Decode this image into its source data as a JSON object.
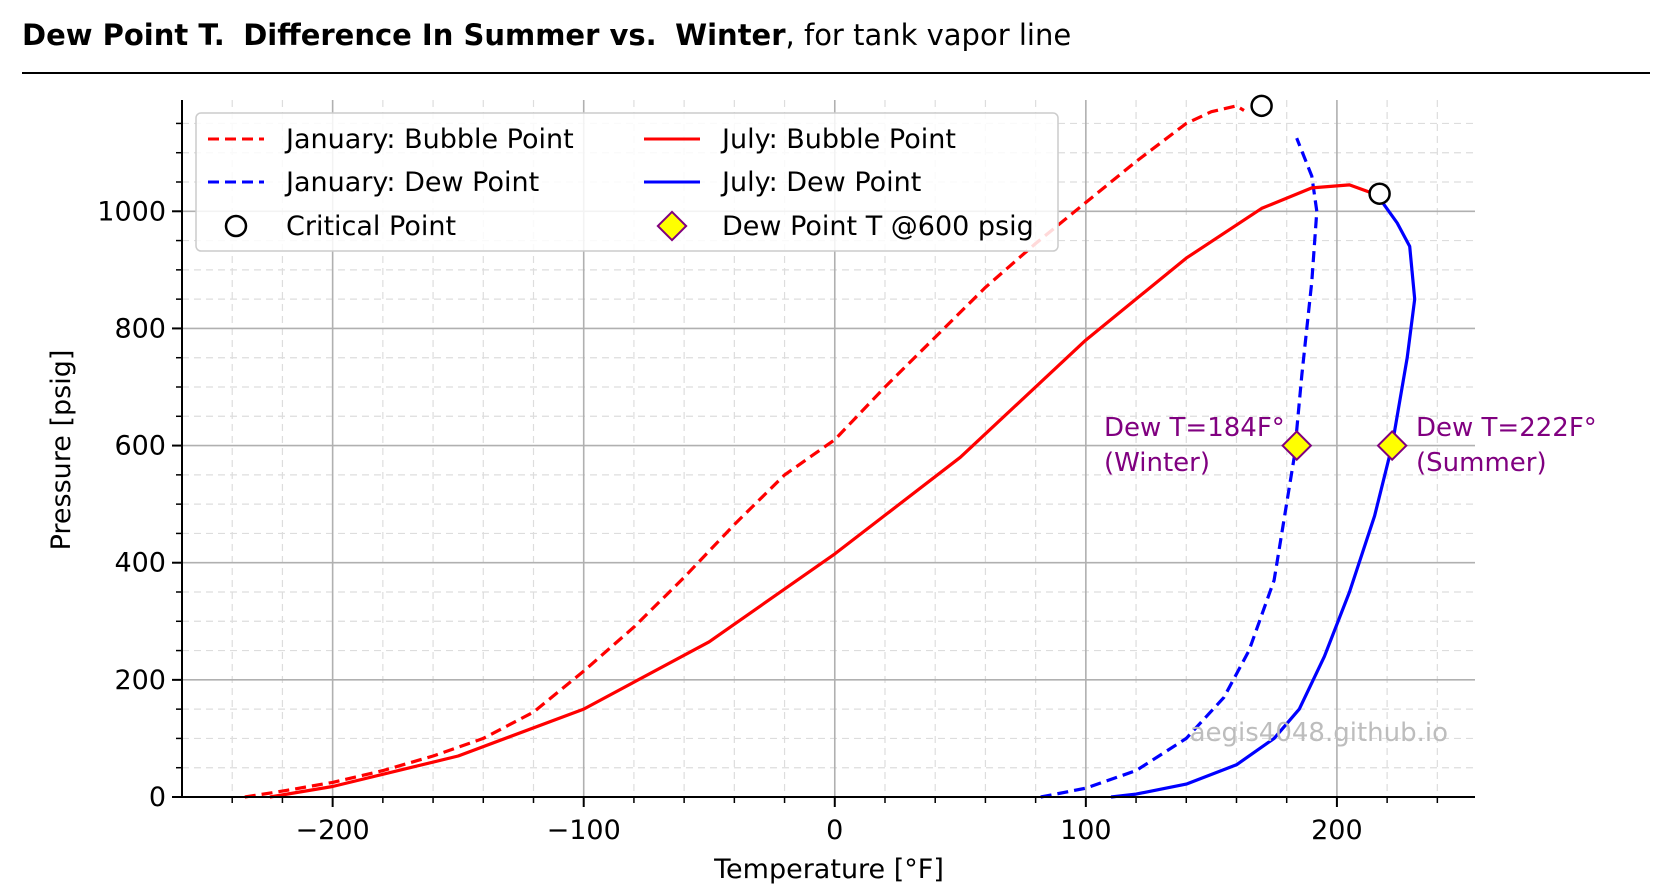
{
  "title": {
    "bold_part_1": "Dew Point T.",
    "bold_part_2": "Difference In Summer vs.",
    "bold_part_3": "Winter",
    "rest": ", for tank vapor line"
  },
  "watermark": "aegis4048.github.io",
  "colors": {
    "bubble": "#ff0000",
    "dew": "#0000ff",
    "annotation": "#800080",
    "marker_fill": "#ffff00",
    "marker_edge": "#800080",
    "grid": "#b0b0b0"
  },
  "chart_data": {
    "type": "line",
    "xlabel": "Temperature [°F]",
    "ylabel": "Pressure [psig]",
    "xlim": [
      -260,
      255
    ],
    "ylim": [
      0,
      1190
    ],
    "x_ticks": [
      -200,
      -100,
      0,
      100,
      200
    ],
    "x_tick_labels": [
      "−200",
      "−100",
      "0",
      "100",
      "200"
    ],
    "y_ticks": [
      0,
      200,
      400,
      600,
      800,
      1000
    ],
    "y_tick_labels": [
      "0",
      "200",
      "400",
      "600",
      "800",
      "1000"
    ],
    "grid": true,
    "legend_position": "top-left",
    "series": [
      {
        "name": "January: Bubble Point",
        "color": "#ff0000",
        "dash": true,
        "points": [
          [
            -235,
            0
          ],
          [
            -220,
            10
          ],
          [
            -200,
            25
          ],
          [
            -180,
            45
          ],
          [
            -160,
            70
          ],
          [
            -140,
            100
          ],
          [
            -120,
            145
          ],
          [
            -100,
            215
          ],
          [
            -80,
            290
          ],
          [
            -60,
            375
          ],
          [
            -40,
            465
          ],
          [
            -20,
            550
          ],
          [
            0,
            610
          ],
          [
            20,
            700
          ],
          [
            40,
            785
          ],
          [
            60,
            870
          ],
          [
            80,
            945
          ],
          [
            100,
            1015
          ],
          [
            120,
            1085
          ],
          [
            140,
            1150
          ],
          [
            150,
            1170
          ],
          [
            160,
            1180
          ],
          [
            163,
            1172
          ]
        ]
      },
      {
        "name": "January: Dew Point",
        "color": "#0000ff",
        "dash": true,
        "points": [
          [
            82,
            0
          ],
          [
            100,
            15
          ],
          [
            120,
            45
          ],
          [
            140,
            100
          ],
          [
            155,
            170
          ],
          [
            165,
            250
          ],
          [
            175,
            370
          ],
          [
            183,
            580
          ],
          [
            186,
            720
          ],
          [
            190,
            880
          ],
          [
            192,
            1000
          ],
          [
            190,
            1060
          ],
          [
            184,
            1125
          ]
        ]
      },
      {
        "name": "July: Bubble Point",
        "color": "#ff0000",
        "dash": false,
        "points": [
          [
            -225,
            0
          ],
          [
            -200,
            18
          ],
          [
            -150,
            70
          ],
          [
            -100,
            150
          ],
          [
            -50,
            265
          ],
          [
            0,
            415
          ],
          [
            50,
            580
          ],
          [
            100,
            780
          ],
          [
            140,
            920
          ],
          [
            170,
            1005
          ],
          [
            190,
            1040
          ],
          [
            205,
            1045
          ],
          [
            216,
            1028
          ]
        ]
      },
      {
        "name": "July: Dew Point",
        "color": "#0000ff",
        "dash": false,
        "points": [
          [
            110,
            0
          ],
          [
            120,
            5
          ],
          [
            140,
            22
          ],
          [
            160,
            55
          ],
          [
            175,
            100
          ],
          [
            185,
            150
          ],
          [
            195,
            240
          ],
          [
            205,
            350
          ],
          [
            215,
            480
          ],
          [
            222,
            600
          ],
          [
            228,
            750
          ],
          [
            231,
            850
          ],
          [
            229,
            940
          ],
          [
            224,
            980
          ],
          [
            216,
            1028
          ]
        ]
      }
    ],
    "critical_points": {
      "name": "Critical Point",
      "points": [
        [
          170,
          1180
        ],
        [
          217,
          1030
        ]
      ]
    },
    "dew_point_markers": {
      "name": "Dew Point T @600 psig",
      "points": [
        [
          184,
          600
        ],
        [
          222,
          600
        ]
      ]
    },
    "annotations": [
      {
        "line1": "Dew T=184F°",
        "line2": "(Winter)"
      },
      {
        "line1": "Dew T=222F°",
        "line2": "(Summer)"
      }
    ]
  }
}
